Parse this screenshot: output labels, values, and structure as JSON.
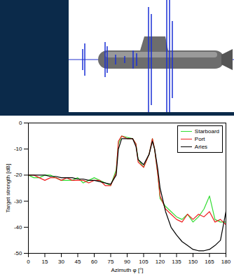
{
  "chart_data": {
    "type": "line",
    "xlabel": "Azimuth φ [°]",
    "ylabel": "Target strength [dB]",
    "x": [
      0,
      5,
      10,
      15,
      20,
      25,
      30,
      35,
      40,
      45,
      50,
      55,
      60,
      65,
      70,
      75,
      80,
      82,
      85,
      90,
      95,
      98,
      100,
      105,
      110,
      113,
      115,
      118,
      120,
      125,
      130,
      135,
      140,
      145,
      150,
      155,
      160,
      165,
      170,
      175,
      180
    ],
    "series": [
      {
        "name": "Starboard",
        "color": "#33dd33",
        "values": [
          -20,
          -21,
          -21,
          -20,
          -20,
          -21,
          -22,
          -22,
          -22,
          -21,
          -23,
          -22,
          -21,
          -22,
          -23,
          -24,
          -18,
          -8,
          -5,
          -5.5,
          -6,
          -8,
          -14,
          -17,
          -12,
          -6,
          -10,
          -20,
          -29,
          -32,
          -34,
          -36,
          -37,
          -35,
          -38,
          -36,
          -33,
          -28,
          -37,
          -38,
          -38
        ]
      },
      {
        "name": "Port",
        "color": "#ee2222",
        "values": [
          -20,
          -20,
          -21,
          -22,
          -21,
          -21,
          -22,
          -21,
          -22,
          -22,
          -22,
          -23,
          -22,
          -22,
          -24,
          -24,
          -19,
          -7,
          -5,
          -6,
          -6,
          -8,
          -15,
          -17,
          -12,
          -6,
          -10,
          -20,
          -28,
          -33,
          -35,
          -37,
          -38,
          -35,
          -37,
          -35,
          -36,
          -34,
          -38,
          -37,
          -39
        ]
      },
      {
        "name": "Aries",
        "color": "#000000",
        "values": [
          -20,
          -20,
          -20,
          -20,
          -20.5,
          -20.5,
          -21,
          -21,
          -21,
          -21.5,
          -21.5,
          -22,
          -22,
          -22.5,
          -23,
          -23.5,
          -20,
          -10,
          -6,
          -6,
          -6,
          -9,
          -14,
          -16,
          -12,
          -7,
          -10,
          -18,
          -25,
          -34,
          -40,
          -43,
          -45.5,
          -47,
          -48.5,
          -49,
          -49,
          -48.5,
          -47,
          -45,
          -34
        ]
      }
    ],
    "xlim": [
      0,
      180
    ],
    "xticks": [
      0,
      15,
      30,
      45,
      60,
      75,
      90,
      105,
      120,
      135,
      150,
      165,
      180
    ],
    "ylim": [
      -50,
      0
    ],
    "yticks": [
      -50,
      -40,
      -30,
      -20,
      -10,
      0
    ],
    "grid": false,
    "legend": "top-right"
  }
}
